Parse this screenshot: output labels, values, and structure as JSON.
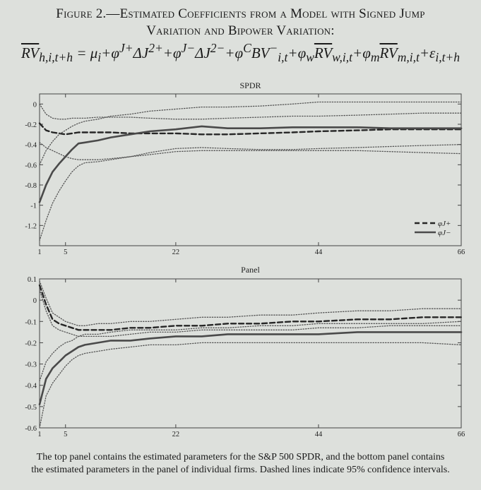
{
  "figure": {
    "title_line1": "Figure 2.—Estimated Coefficients from a Model with Signed Jump",
    "title_line2": "Variation and Bipower Variation:",
    "formula": "RVh,i,t+h = μi + φJ+ΔJ2+ + φJ−ΔJ2− + φCBV−i,t + φwRVw,i,t + φmRVm,i,t + εi,t+h",
    "caption_line1": "The top panel contains the estimated parameters for the S&P 500 SPDR, and the bottom panel contains",
    "caption_line2": "the estimated parameters in the panel of individual firms. Dashed lines indicate 95% confidence intervals."
  },
  "chart_data": [
    {
      "type": "line",
      "title": "SPDR",
      "xlabel": "",
      "ylabel": "",
      "xlim": [
        1,
        66
      ],
      "ylim": [
        -1.4,
        0.1
      ],
      "xticks": [
        1,
        5,
        22,
        44,
        66
      ],
      "yticks": [
        0,
        -0.2,
        -0.4,
        -0.6,
        -0.8,
        -1,
        -1.2
      ],
      "ytick_labels": [
        "0",
        "-0.2",
        "-0.4",
        "-0.6",
        "-0.8",
        "-1",
        "-1.2"
      ],
      "legend": {
        "position": "bottom-right",
        "entries": [
          "φJ+",
          "φJ−"
        ]
      },
      "x": [
        1,
        2,
        3,
        4,
        5,
        6,
        7,
        8,
        10,
        12,
        15,
        18,
        22,
        26,
        30,
        35,
        40,
        44,
        50,
        55,
        60,
        66
      ],
      "series": [
        {
          "name": "φJ+",
          "style": "dashed",
          "values": [
            -0.19,
            -0.26,
            -0.28,
            -0.29,
            -0.3,
            -0.29,
            -0.28,
            -0.28,
            -0.28,
            -0.28,
            -0.29,
            -0.29,
            -0.29,
            -0.3,
            -0.3,
            -0.29,
            -0.28,
            -0.27,
            -0.26,
            -0.25,
            -0.25,
            -0.25
          ]
        },
        {
          "name": "φJ+ 95% lower",
          "style": "dotted",
          "values": [
            -0.38,
            -0.43,
            -0.46,
            -0.49,
            -0.52,
            -0.54,
            -0.55,
            -0.55,
            -0.55,
            -0.54,
            -0.52,
            -0.48,
            -0.44,
            -0.43,
            -0.44,
            -0.45,
            -0.45,
            -0.44,
            -0.43,
            -0.42,
            -0.41,
            -0.4
          ]
        },
        {
          "name": "φJ+ 95% upper",
          "style": "dotted",
          "values": [
            0,
            -0.1,
            -0.14,
            -0.15,
            -0.15,
            -0.14,
            -0.14,
            -0.14,
            -0.13,
            -0.13,
            -0.13,
            -0.14,
            -0.15,
            -0.15,
            -0.14,
            -0.13,
            -0.12,
            -0.12,
            -0.11,
            -0.1,
            -0.09,
            -0.09
          ]
        },
        {
          "name": "φJ−",
          "style": "solid",
          "values": [
            -0.97,
            -0.8,
            -0.67,
            -0.59,
            -0.52,
            -0.45,
            -0.39,
            -0.38,
            -0.36,
            -0.33,
            -0.3,
            -0.27,
            -0.25,
            -0.22,
            -0.24,
            -0.24,
            -0.23,
            -0.23,
            -0.23,
            -0.24,
            -0.24,
            -0.24
          ]
        },
        {
          "name": "φJ− 95% lower",
          "style": "dotted",
          "values": [
            -1.35,
            -1.15,
            -0.98,
            -0.86,
            -0.76,
            -0.67,
            -0.61,
            -0.58,
            -0.57,
            -0.55,
            -0.52,
            -0.5,
            -0.47,
            -0.46,
            -0.46,
            -0.46,
            -0.46,
            -0.46,
            -0.46,
            -0.47,
            -0.48,
            -0.49
          ]
        },
        {
          "name": "φJ− 95% upper",
          "style": "dotted",
          "values": [
            -0.6,
            -0.46,
            -0.37,
            -0.3,
            -0.26,
            -0.22,
            -0.19,
            -0.17,
            -0.15,
            -0.12,
            -0.1,
            -0.07,
            -0.05,
            -0.03,
            -0.03,
            -0.02,
            0,
            0.02,
            0.02,
            0.02,
            0.02,
            0.02
          ]
        }
      ]
    },
    {
      "type": "line",
      "title": "Panel",
      "xlabel": "",
      "ylabel": "",
      "xlim": [
        1,
        66
      ],
      "ylim": [
        -0.6,
        0.1
      ],
      "xticks": [
        1,
        5,
        22,
        44,
        66
      ],
      "yticks": [
        0.1,
        0,
        -0.1,
        -0.2,
        -0.3,
        -0.4,
        -0.5,
        -0.6
      ],
      "ytick_labels": [
        "0.1",
        "0",
        "-0.1",
        "-0.2",
        "-0.3",
        "-0.4",
        "-0.5",
        "-0.6"
      ],
      "x": [
        1,
        2,
        3,
        4,
        5,
        6,
        7,
        8,
        10,
        12,
        15,
        18,
        22,
        26,
        30,
        35,
        40,
        44,
        50,
        55,
        60,
        66
      ],
      "series": [
        {
          "name": "φJ+",
          "style": "dashed",
          "values": [
            0.07,
            -0.02,
            -0.09,
            -0.11,
            -0.12,
            -0.13,
            -0.14,
            -0.14,
            -0.14,
            -0.14,
            -0.13,
            -0.13,
            -0.12,
            -0.12,
            -0.11,
            -0.11,
            -0.1,
            -0.1,
            -0.09,
            -0.09,
            -0.08,
            -0.08
          ]
        },
        {
          "name": "φJ+ 95% lower",
          "style": "dotted",
          "values": [
            0.05,
            -0.05,
            -0.12,
            -0.14,
            -0.15,
            -0.16,
            -0.17,
            -0.17,
            -0.17,
            -0.17,
            -0.16,
            -0.15,
            -0.15,
            -0.14,
            -0.14,
            -0.14,
            -0.14,
            -0.13,
            -0.13,
            -0.12,
            -0.12,
            -0.12
          ]
        },
        {
          "name": "φJ+ 95% upper",
          "style": "dotted",
          "values": [
            0.09,
            0.01,
            -0.06,
            -0.08,
            -0.1,
            -0.11,
            -0.12,
            -0.12,
            -0.11,
            -0.11,
            -0.1,
            -0.1,
            -0.09,
            -0.08,
            -0.08,
            -0.07,
            -0.07,
            -0.06,
            -0.05,
            -0.05,
            -0.04,
            -0.04
          ]
        },
        {
          "name": "φJ−",
          "style": "solid",
          "values": [
            -0.49,
            -0.37,
            -0.32,
            -0.29,
            -0.26,
            -0.24,
            -0.22,
            -0.21,
            -0.2,
            -0.19,
            -0.19,
            -0.18,
            -0.17,
            -0.17,
            -0.16,
            -0.16,
            -0.16,
            -0.16,
            -0.15,
            -0.15,
            -0.15,
            -0.15
          ]
        },
        {
          "name": "φJ− 95% lower",
          "style": "dotted",
          "values": [
            -0.6,
            -0.45,
            -0.39,
            -0.35,
            -0.31,
            -0.28,
            -0.26,
            -0.25,
            -0.24,
            -0.23,
            -0.22,
            -0.21,
            -0.21,
            -0.2,
            -0.2,
            -0.2,
            -0.2,
            -0.2,
            -0.2,
            -0.2,
            -0.2,
            -0.21
          ]
        },
        {
          "name": "φJ− 95% upper",
          "style": "dotted",
          "values": [
            -0.38,
            -0.29,
            -0.25,
            -0.22,
            -0.2,
            -0.19,
            -0.17,
            -0.16,
            -0.16,
            -0.15,
            -0.14,
            -0.14,
            -0.14,
            -0.13,
            -0.13,
            -0.12,
            -0.12,
            -0.11,
            -0.11,
            -0.11,
            -0.11,
            -0.1
          ]
        }
      ]
    }
  ]
}
